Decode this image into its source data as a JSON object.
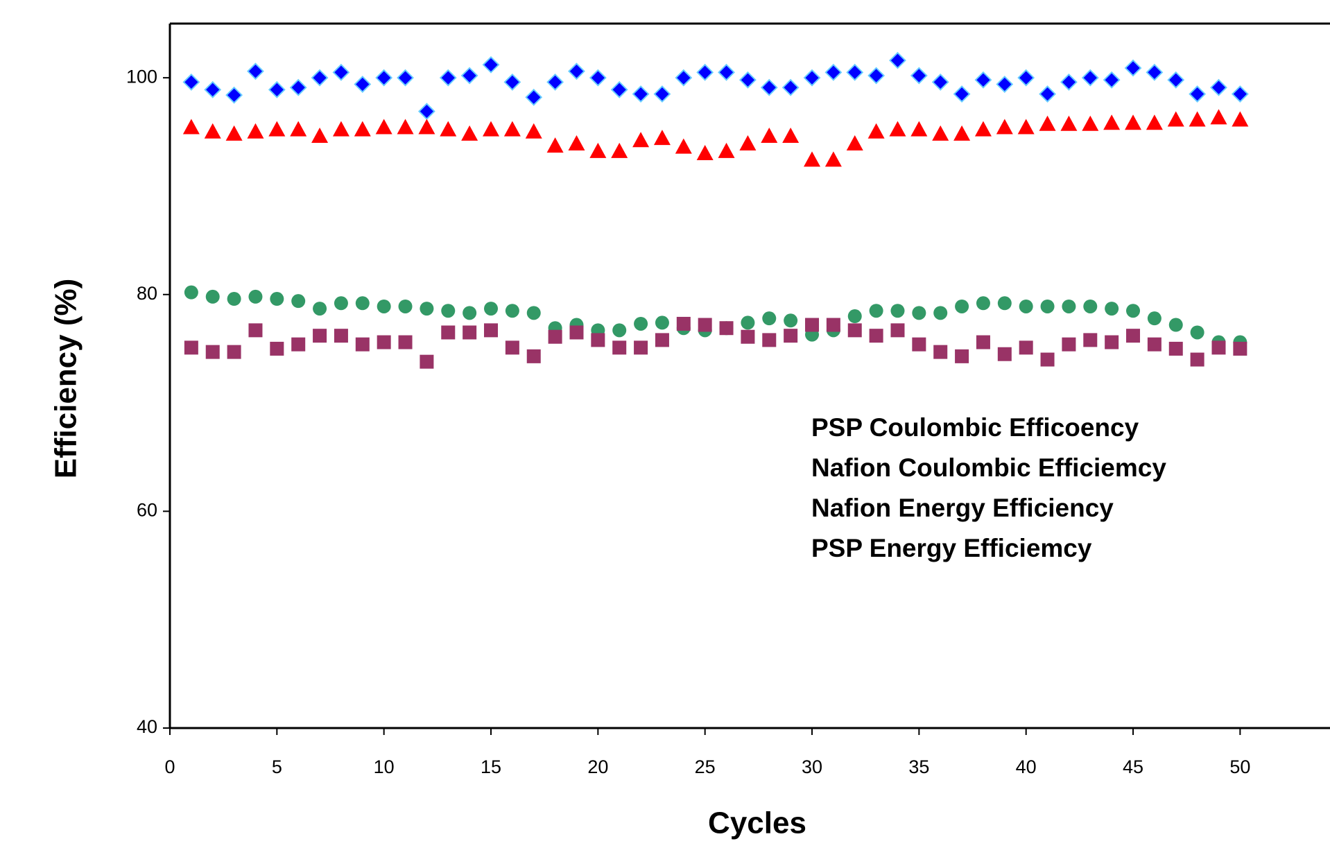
{
  "chart_data": {
    "type": "scatter",
    "x_label": "Cycles",
    "y_label": "Efficiency (%)",
    "xlim": [
      0,
      54.2
    ],
    "ylim": [
      40,
      105
    ],
    "xticks": [
      0,
      5,
      10,
      15,
      20,
      25,
      30,
      35,
      40,
      45,
      50
    ],
    "yticks": [
      40,
      60,
      80,
      100
    ],
    "x": [
      1,
      2,
      3,
      4,
      5,
      6,
      7,
      8,
      9,
      10,
      11,
      12,
      13,
      14,
      15,
      16,
      17,
      18,
      19,
      20,
      21,
      22,
      23,
      24,
      25,
      26,
      27,
      28,
      29,
      30,
      31,
      32,
      33,
      34,
      35,
      36,
      37,
      38,
      39,
      40,
      41,
      42,
      43,
      44,
      45,
      46,
      47,
      48,
      49,
      50
    ],
    "series": [
      {
        "name": "PSP Coulombic Efficoency",
        "color": "#0000ff",
        "marker": "diamond",
        "values": [
          99.6,
          98.9,
          98.4,
          100.6,
          98.9,
          99.1,
          100,
          100.5,
          99.4,
          100,
          100,
          96.9,
          100,
          100.2,
          101.2,
          99.6,
          98.2,
          99.6,
          100.6,
          100,
          98.9,
          98.5,
          98.5,
          100,
          100.5,
          100.5,
          99.8,
          99.1,
          99.1,
          100,
          100.5,
          100.5,
          100.2,
          101.6,
          100.2,
          99.6,
          98.5,
          99.8,
          99.4,
          100,
          98.5,
          99.6,
          100,
          99.8,
          100.9,
          100.5,
          99.8,
          98.5,
          99.1,
          98.5
        ]
      },
      {
        "name": "Nafion Coulombic Efficiemcy",
        "color": "#ff0000",
        "marker": "triangle",
        "values": [
          95.5,
          95.1,
          94.9,
          95.1,
          95.3,
          95.3,
          94.7,
          95.3,
          95.3,
          95.5,
          95.5,
          95.5,
          95.3,
          94.9,
          95.3,
          95.3,
          95.1,
          93.8,
          94.0,
          93.3,
          93.3,
          94.3,
          94.5,
          93.7,
          93.1,
          93.3,
          94.0,
          94.7,
          94.7,
          92.5,
          92.5,
          94.0,
          95.1,
          95.3,
          95.3,
          94.9,
          94.9,
          95.3,
          95.5,
          95.5,
          95.8,
          95.8,
          95.8,
          95.9,
          95.9,
          95.9,
          96.2,
          96.2,
          96.4,
          96.2
        ]
      },
      {
        "name": "Nafion Energy Efficiency",
        "color": "#339966",
        "marker": "circle",
        "values": [
          80.2,
          79.8,
          79.6,
          79.8,
          79.6,
          79.4,
          78.7,
          79.2,
          79.2,
          78.9,
          78.9,
          78.7,
          78.5,
          78.3,
          78.7,
          78.5,
          78.3,
          76.9,
          77.2,
          76.7,
          76.7,
          77.3,
          77.4,
          76.9,
          76.7,
          76.9,
          77.4,
          77.8,
          77.6,
          76.3,
          76.7,
          78.0,
          78.5,
          78.5,
          78.3,
          78.3,
          78.9,
          79.2,
          79.2,
          78.9,
          78.9,
          78.9,
          78.9,
          78.7,
          78.5,
          77.8,
          77.2,
          76.5,
          75.6,
          75.6
        ]
      },
      {
        "name": "PSP Energy Efficiemcy",
        "color": "#993366",
        "marker": "square",
        "values": [
          75.1,
          74.7,
          74.7,
          76.7,
          75.0,
          75.4,
          76.2,
          76.2,
          75.4,
          75.6,
          75.6,
          73.8,
          76.5,
          76.5,
          76.7,
          75.1,
          74.3,
          76.1,
          76.5,
          75.8,
          75.1,
          75.1,
          75.8,
          77.3,
          77.2,
          76.9,
          76.1,
          75.8,
          76.2,
          77.2,
          77.2,
          76.7,
          76.2,
          76.7,
          75.4,
          74.7,
          74.3,
          75.6,
          74.5,
          75.1,
          74.0,
          75.4,
          75.8,
          75.6,
          76.2,
          75.4,
          75.0,
          74.0,
          75.1,
          75.0
        ]
      }
    ]
  }
}
